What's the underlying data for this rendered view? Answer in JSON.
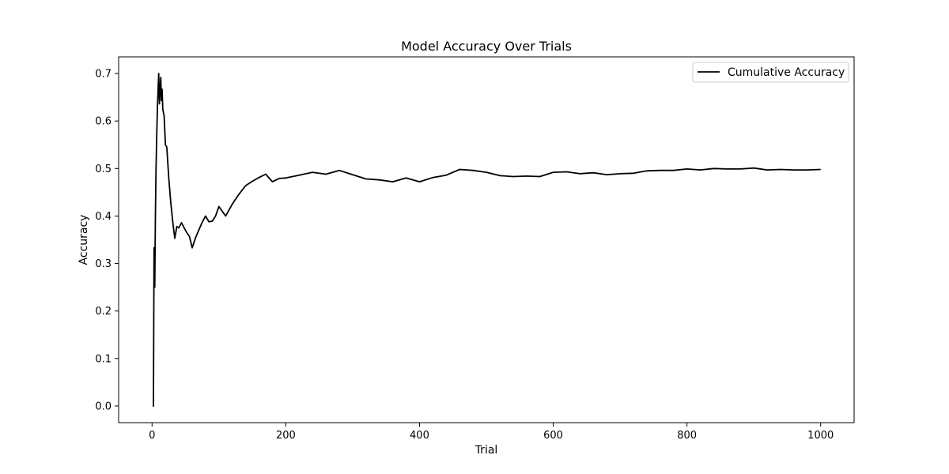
{
  "chart_data": {
    "type": "line",
    "title": "Model Accuracy Over Trials",
    "xlabel": "Trial",
    "ylabel": "Accuracy",
    "xlim": [
      -50,
      1050
    ],
    "ylim": [
      -0.035,
      0.735
    ],
    "x_ticks": [
      0,
      200,
      400,
      600,
      800,
      1000
    ],
    "y_ticks": [
      0.0,
      0.1,
      0.2,
      0.3,
      0.4,
      0.5,
      0.6,
      0.7
    ],
    "x_tick_labels": [
      "0",
      "200",
      "400",
      "600",
      "800",
      "1000"
    ],
    "y_tick_labels": [
      "0.0",
      "0.1",
      "0.2",
      "0.3",
      "0.4",
      "0.5",
      "0.6",
      "0.7"
    ],
    "grid": false,
    "legend_position": "top-right",
    "series": [
      {
        "name": "Cumulative Accuracy",
        "color": "#000000",
        "x": [
          1,
          2,
          3,
          4,
          5,
          6,
          7,
          8,
          9,
          10,
          11,
          12,
          13,
          14,
          15,
          16,
          18,
          20,
          22,
          25,
          28,
          31,
          34,
          37,
          40,
          44,
          48,
          52,
          56,
          60,
          65,
          70,
          75,
          80,
          85,
          90,
          95,
          100,
          105,
          110,
          120,
          130,
          140,
          150,
          160,
          170,
          180,
          190,
          200,
          220,
          240,
          260,
          280,
          300,
          320,
          340,
          360,
          380,
          400,
          420,
          440,
          460,
          480,
          500,
          520,
          540,
          560,
          580,
          600,
          620,
          640,
          660,
          680,
          700,
          720,
          740,
          760,
          780,
          800,
          820,
          840,
          860,
          880,
          900,
          920,
          940,
          960,
          980,
          1000
        ],
        "y": [
          0.0,
          0.0,
          0.333,
          0.25,
          0.4,
          0.5,
          0.571,
          0.625,
          0.667,
          0.7,
          0.636,
          0.667,
          0.692,
          0.643,
          0.667,
          0.625,
          0.611,
          0.55,
          0.545,
          0.48,
          0.429,
          0.387,
          0.353,
          0.378,
          0.375,
          0.386,
          0.375,
          0.365,
          0.357,
          0.333,
          0.354,
          0.371,
          0.387,
          0.4,
          0.388,
          0.389,
          0.4,
          0.42,
          0.41,
          0.4,
          0.425,
          0.446,
          0.464,
          0.473,
          0.481,
          0.488,
          0.472,
          0.479,
          0.48,
          0.486,
          0.492,
          0.488,
          0.496,
          0.487,
          0.478,
          0.476,
          0.472,
          0.48,
          0.472,
          0.481,
          0.486,
          0.498,
          0.496,
          0.492,
          0.485,
          0.483,
          0.484,
          0.483,
          0.492,
          0.493,
          0.489,
          0.491,
          0.487,
          0.489,
          0.49,
          0.495,
          0.496,
          0.496,
          0.499,
          0.497,
          0.5,
          0.499,
          0.499,
          0.501,
          0.497,
          0.498,
          0.497,
          0.497,
          0.498
        ]
      }
    ]
  }
}
